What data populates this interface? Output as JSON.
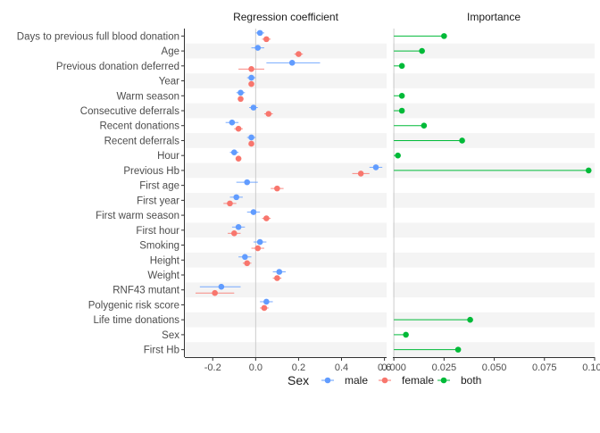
{
  "chart_data": {
    "type": "scatter",
    "variables": [
      "Days to previous full blood donation",
      "Age",
      "Previous donation deferred",
      "Year",
      "Warm season",
      "Consecutive deferrals",
      "Recent donations",
      "Recent deferrals",
      "Hour",
      "Previous Hb",
      "First age",
      "First year",
      "First warm season",
      "First hour",
      "Smoking",
      "Height",
      "Weight",
      "RNF43 mutant",
      "Polygenic risk score",
      "Life time donations",
      "Sex",
      "First Hb"
    ],
    "panels": [
      {
        "title": "Regression coefficient",
        "xlim": [
          -0.33,
          0.61
        ],
        "xticks": [
          -0.2,
          0.0,
          0.2,
          0.4,
          0.6
        ],
        "xtick_labels": [
          "-0.2",
          "0.0",
          "0.2",
          "0.4",
          "0.6"
        ],
        "zero_line": 0,
        "series": [
          {
            "name": "male",
            "values": [
              0.02,
              0.01,
              0.17,
              -0.02,
              -0.07,
              -0.01,
              -0.11,
              -0.02,
              -0.1,
              0.56,
              -0.04,
              -0.09,
              -0.01,
              -0.08,
              0.02,
              -0.05,
              0.11,
              -0.16,
              0.05,
              null,
              null,
              null
            ],
            "lo": [
              0.0,
              -0.02,
              0.05,
              -0.04,
              -0.09,
              -0.03,
              -0.14,
              -0.04,
              -0.12,
              0.53,
              -0.09,
              -0.12,
              -0.04,
              -0.11,
              -0.01,
              -0.08,
              0.08,
              -0.26,
              0.02,
              null,
              null,
              null
            ],
            "hi": [
              0.04,
              0.04,
              0.3,
              0.0,
              -0.05,
              0.01,
              -0.08,
              0.0,
              -0.08,
              0.59,
              0.01,
              -0.06,
              0.02,
              -0.05,
              0.05,
              -0.02,
              0.14,
              -0.07,
              0.08,
              null,
              null,
              null
            ]
          },
          {
            "name": "female",
            "values": [
              0.05,
              0.2,
              -0.02,
              -0.02,
              -0.07,
              0.06,
              -0.08,
              -0.02,
              -0.08,
              0.49,
              0.1,
              -0.12,
              0.05,
              -0.1,
              0.01,
              -0.04,
              0.1,
              -0.19,
              0.04,
              null,
              null,
              null
            ],
            "lo": [
              0.03,
              0.18,
              -0.08,
              -0.03,
              -0.08,
              0.04,
              -0.1,
              -0.03,
              -0.09,
              0.45,
              0.07,
              -0.15,
              0.03,
              -0.13,
              -0.02,
              -0.06,
              0.08,
              -0.28,
              0.02,
              null,
              null,
              null
            ],
            "hi": [
              0.07,
              0.22,
              0.04,
              -0.01,
              -0.06,
              0.08,
              -0.06,
              -0.01,
              -0.07,
              0.53,
              0.13,
              -0.09,
              0.07,
              -0.07,
              0.04,
              -0.02,
              0.12,
              -0.1,
              0.06,
              null,
              null,
              null
            ]
          }
        ]
      },
      {
        "title": "Importance",
        "xlim": [
          -0.0005,
          0.1
        ],
        "xticks": [
          0.0,
          0.025,
          0.05,
          0.075,
          0.1
        ],
        "xtick_labels": [
          "0.000",
          "0.025",
          "0.050",
          "0.075",
          "0.100"
        ],
        "zero_line": 0,
        "series": [
          {
            "name": "both",
            "values": [
              0.025,
              0.014,
              0.004,
              null,
              0.004,
              0.004,
              0.015,
              0.034,
              0.002,
              0.097,
              null,
              null,
              null,
              null,
              null,
              null,
              null,
              null,
              null,
              0.038,
              0.006,
              0.032
            ]
          }
        ]
      }
    ],
    "legend": {
      "title": "Sex",
      "position": "bottom",
      "entries": [
        {
          "label": "male",
          "color": "#619CFF"
        },
        {
          "label": "female",
          "color": "#F8766D"
        },
        {
          "label": "both",
          "color": "#00BA38"
        }
      ]
    }
  }
}
